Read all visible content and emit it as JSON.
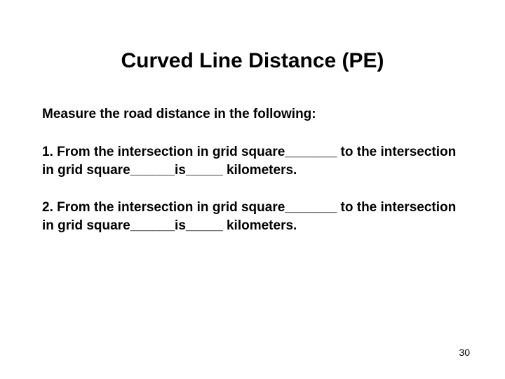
{
  "title": "Curved Line Distance (PE)",
  "instruction": "Measure the road distance in the following:",
  "questions": [
    {
      "prefix": "1.  From the intersection in grid square_______ to the intersection in grid square______is_____ kilometers."
    },
    {
      "prefix": "2.  From the intersection in grid square_______ to the intersection in grid square______is_____ kilometers."
    }
  ],
  "page_number": "30",
  "colors": {
    "background": "#ffffff",
    "text": "#000000"
  },
  "typography": {
    "title_fontsize": 30,
    "body_fontsize": 19,
    "page_number_fontsize": 14,
    "font_family": "Arial"
  }
}
